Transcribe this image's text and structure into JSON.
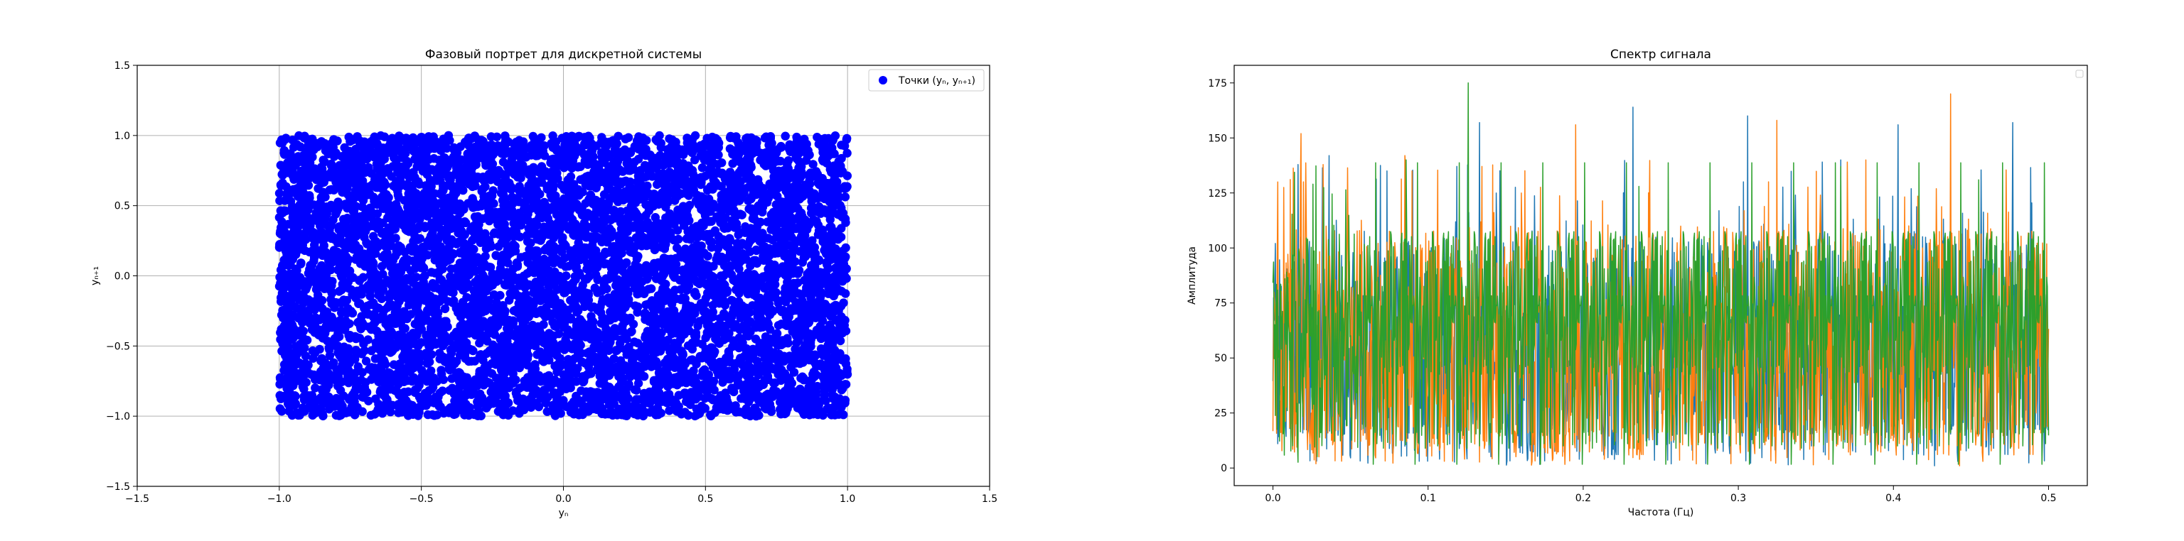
{
  "chart_data": [
    {
      "type": "scatter",
      "title": "Фазовый портрет для дискретной системы",
      "xlabel": "yₙ",
      "ylabel": "yₙ₊₁",
      "xlim": [
        -1.5,
        1.5
      ],
      "ylim": [
        -1.5,
        1.5
      ],
      "xticks": [
        -1.5,
        -1.0,
        -0.5,
        0.0,
        0.5,
        1.0,
        1.5
      ],
      "yticks": [
        -1.5,
        -1.0,
        -0.5,
        0.0,
        0.5,
        1.0,
        1.5
      ],
      "xtick_labels": [
        "−1.5",
        "−1.0",
        "−0.5",
        "0.0",
        "0.5",
        "1.0",
        "1.5"
      ],
      "ytick_labels": [
        "−1.5",
        "−1.0",
        "−0.5",
        "0.0",
        "0.5",
        "1.0",
        "1.5"
      ],
      "grid": true,
      "legend": {
        "position": "top-right",
        "entries": [
          "Точки (yₙ, yₙ₊₁)"
        ]
      },
      "series": [
        {
          "name": "Точки (yₙ, yₙ₊₁)",
          "color": "#0000ff",
          "distribution": "uniform",
          "x_range": [
            -1.0,
            1.0
          ],
          "y_range": [
            -1.0,
            1.0
          ],
          "points": [
            [
              -0.98,
              0.97
            ],
            [
              -0.52,
              0.41
            ],
            [
              0.13,
              -0.22
            ],
            [
              0.66,
              0.88
            ],
            [
              0.94,
              -0.95
            ],
            [
              -0.31,
              -0.74
            ],
            [
              0.45,
              0.12
            ],
            [
              -0.77,
              -0.08
            ],
            [
              0.21,
              0.67
            ],
            [
              0.82,
              -0.43
            ]
          ]
        }
      ]
    },
    {
      "type": "line",
      "title": "Спектр сигнала",
      "xlabel": "Частота (Гц)",
      "ylabel": "Амплитуда",
      "xlim": [
        -0.025,
        0.525
      ],
      "ylim": [
        -8,
        183
      ],
      "xticks": [
        0.0,
        0.1,
        0.2,
        0.3,
        0.4,
        0.5
      ],
      "yticks": [
        0,
        25,
        50,
        75,
        100,
        125,
        150,
        175
      ],
      "xtick_labels": [
        "0.0",
        "0.1",
        "0.2",
        "0.3",
        "0.4",
        "0.5"
      ],
      "ytick_labels": [
        "0",
        "25",
        "50",
        "75",
        "100",
        "125",
        "150",
        "175"
      ],
      "grid": false,
      "legend": {
        "position": "top-right",
        "entries": []
      },
      "series": [
        {
          "color": "#1f77b4",
          "x_range": [
            0.0,
            0.5
          ],
          "typical_range": [
            15,
            105
          ],
          "peaks": [
            [
              0.036,
              142
            ],
            [
              0.133,
              157
            ],
            [
              0.232,
              164
            ],
            [
              0.306,
              160
            ],
            [
              0.403,
              156
            ],
            [
              0.477,
              157
            ]
          ]
        },
        {
          "color": "#ff7f0e",
          "x_range": [
            0.0,
            0.5
          ],
          "typical_range": [
            10,
            110
          ],
          "peaks": [
            [
              0.003,
              130
            ],
            [
              0.018,
              152
            ],
            [
              0.085,
              142
            ],
            [
              0.195,
              156
            ],
            [
              0.325,
              158
            ],
            [
              0.437,
              170
            ]
          ]
        },
        {
          "color": "#2ca02c",
          "x_range": [
            0.0,
            0.5
          ],
          "typical_range": [
            12,
            108
          ],
          "peaks": [
            [
              0.126,
              175
            ],
            [
              0.086,
              140
            ],
            [
              0.236,
              128
            ],
            [
              0.366,
              137
            ],
            [
              0.455,
              131
            ]
          ]
        }
      ]
    }
  ]
}
